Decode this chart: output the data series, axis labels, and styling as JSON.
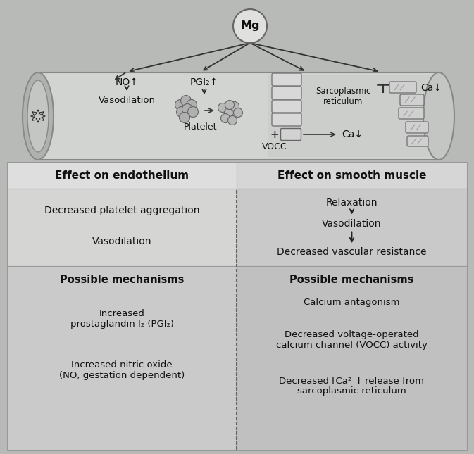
{
  "bg_color": "#b8bab8",
  "tube_body_color": "#d0d2d0",
  "tube_edge_color": "#888888",
  "left_cap_color": "#a8a8a8",
  "right_section_color": "#c8cac8",
  "header_bg_left": "#d8d8d6",
  "header_bg_right": "#d0d0ce",
  "effects_left_bg": "#d2d4d2",
  "effects_right_bg": "#c8cac8",
  "mech_left_bg": "#c8cac8",
  "mech_right_bg": "#c0c2c0",
  "header_left": "Effect on endothelium",
  "header_right": "Effect on smooth muscle",
  "left_effects_1": "Decreased platelet aggregation",
  "left_effects_2": "Vasodilation",
  "left_mech_title": "Possible mechanisms",
  "left_mech_1": "Increased\nprostaglandin I₂ (PGI₂)",
  "left_mech_2": "Increased nitric oxide\n(NO, gestation dependent)",
  "right_effects_1": "Relaxation",
  "right_effects_2": "Vasodilation",
  "right_effects_3": "Decreased vascular resistance",
  "right_mech_title": "Possible mechanisms",
  "right_mech_1": "Calcium antagonism",
  "right_mech_2": "Decreased voltage-operated\ncalcium channel (VOCC) activity",
  "right_mech_3": "Decreased [Ca²⁺]ᵢ release from\nsarcoplasmic reticulum",
  "mg_label": "Mg",
  "no_label": "NO↑",
  "vaso_label": "Vasodilation",
  "pgi_label": "PGI₂↑",
  "platelet_label": "Platelet",
  "sr_label": "Sarcoplasmic\nreticulum",
  "vocc_label": "VOCC",
  "ca_top": "Ca↓",
  "ca_bot": "Ca↓"
}
